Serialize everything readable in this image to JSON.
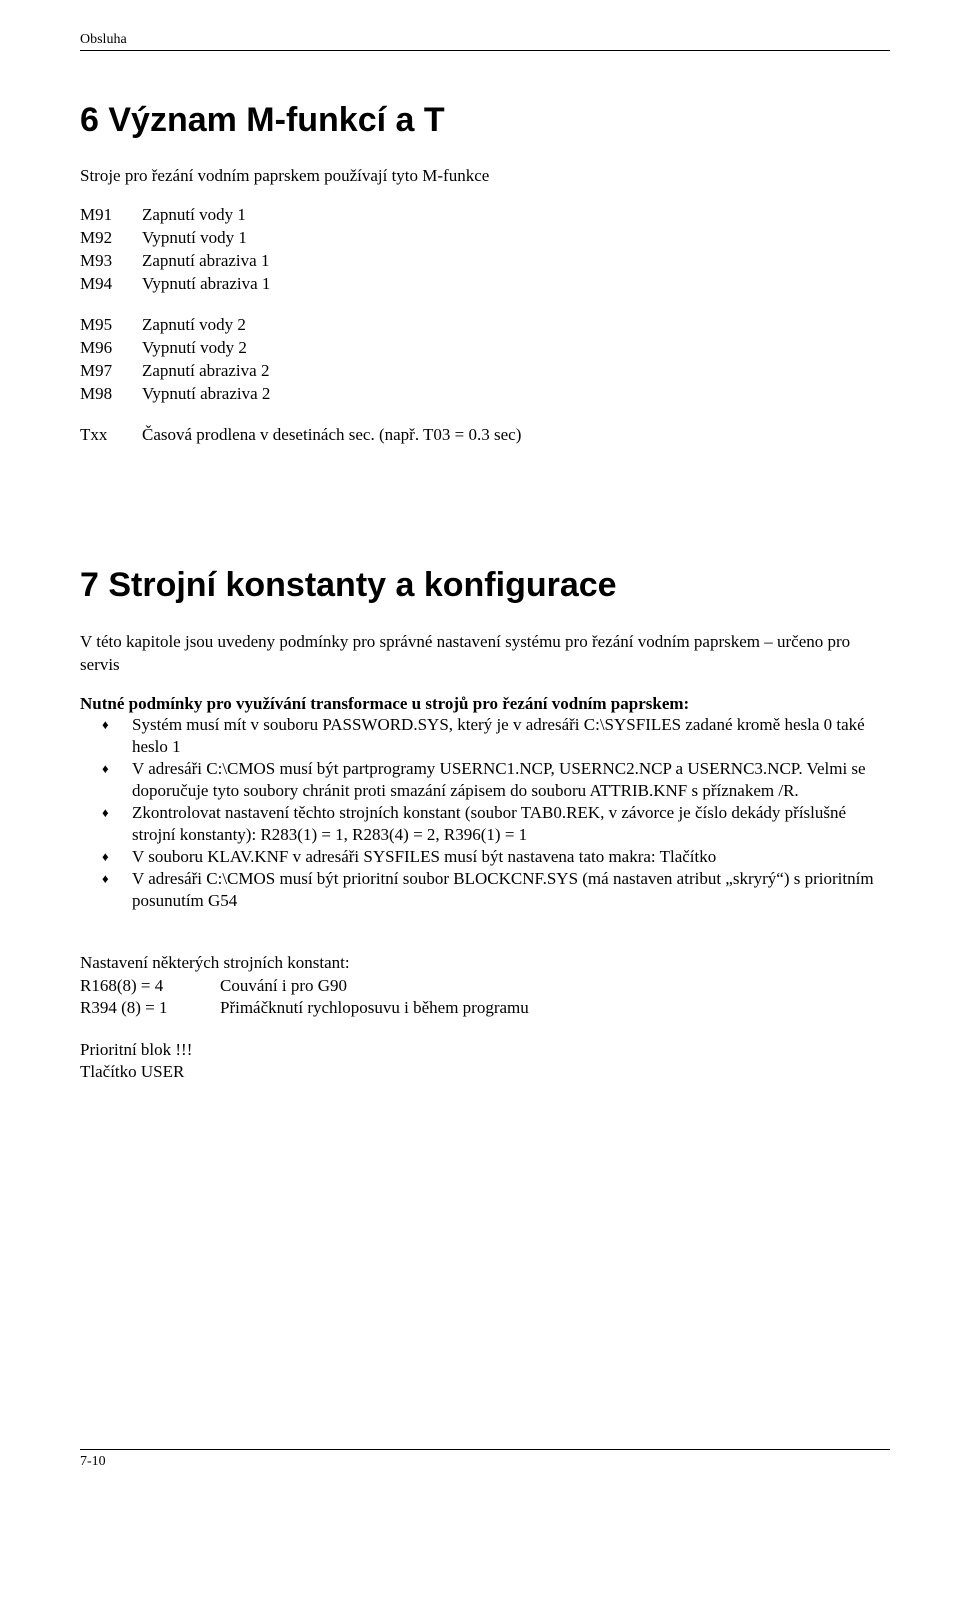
{
  "header": {
    "label": "Obsluha"
  },
  "section1": {
    "title": "6  Význam M-funkcí a T",
    "intro": "Stroje pro řezání vodním paprskem používají tyto M-funkce",
    "groupA": [
      {
        "k": "M91",
        "v": "Zapnutí vody 1"
      },
      {
        "k": "M92",
        "v": "Vypnutí vody 1"
      },
      {
        "k": "M93",
        "v": "Zapnutí abraziva 1"
      },
      {
        "k": "M94",
        "v": "Vypnutí abraziva 1"
      }
    ],
    "groupB": [
      {
        "k": "M95",
        "v": "Zapnutí vody 2"
      },
      {
        "k": "M96",
        "v": "Vypnutí vody 2"
      },
      {
        "k": "M97",
        "v": "Zapnutí abraziva 2"
      },
      {
        "k": "M98",
        "v": "Vypnutí abraziva 2"
      }
    ],
    "groupC": [
      {
        "k": "Txx",
        "v": "Časová prodlena v desetinách sec. (např. T03 = 0.3 sec)"
      }
    ]
  },
  "section2": {
    "title": "7  Strojní konstanty a konfigurace",
    "intro": "V této kapitole jsou uvedeny podmínky pro správné nastavení systému pro řezání vodním paprskem – určeno pro servis",
    "bullets_lead": "Nutné podmínky pro využívání transformace u strojů pro řezání vodním paprskem:",
    "bullets": [
      "Systém musí mít v souboru PASSWORD.SYS, který  je v adresáři C:\\SYSFILES zadané kromě hesla 0 také heslo 1",
      "V adresáři C:\\CMOS musí být partprogramy USERNC1.NCP, USERNC2.NCP a USERNC3.NCP. Velmi se doporučuje tyto soubory chránit proti smazání zápisem do souboru ATTRIB.KNF s příznakem /R.",
      "Zkontrolovat nastavení těchto strojních konstant (soubor TAB0.REK, v závorce je číslo dekády příslušné strojní konstanty): R283(1) = 1, R283(4) = 2, R396(1) = 1",
      "V souboru KLAV.KNF v adresáři SYSFILES musí být nastavena tato makra: Tlačítko",
      "V adresáři C:\\CMOS musí být prioritní soubor BLOCKCNF.SYS (má  nastaven atribut „skryrý“) s prioritním posunutím G54"
    ],
    "settings_title": "Nastavení některých strojních konstant:",
    "settings": [
      {
        "k": "R168(8)  =  4",
        "v": "Couvání i pro G90"
      },
      {
        "k": "R394 (8) = 1",
        "v": "Přimáčknutí rychloposuvu i během programu"
      }
    ],
    "tail1": "Prioritní blok !!!",
    "tail2": "Tlačítko USER"
  },
  "footer": {
    "page": "7-10"
  }
}
